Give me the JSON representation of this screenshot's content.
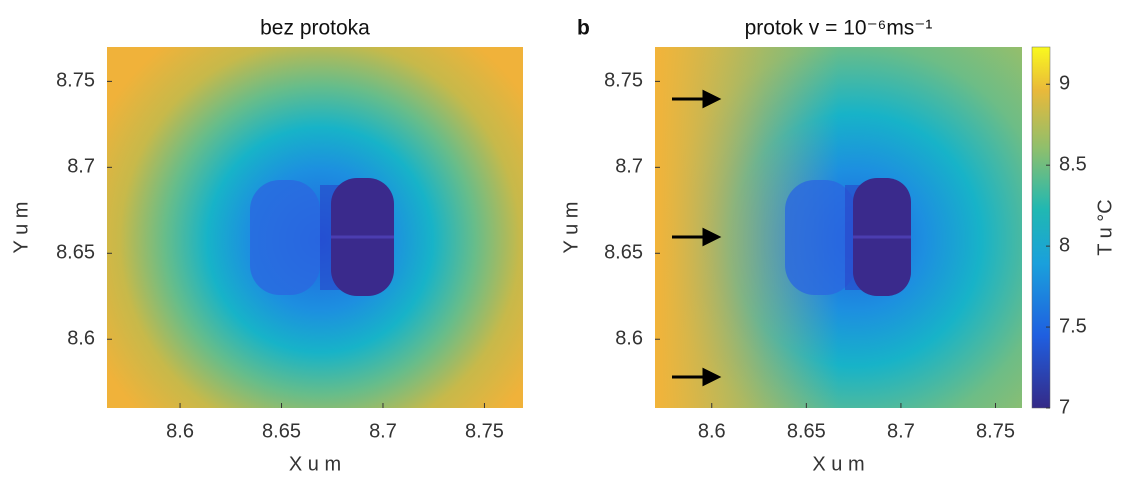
{
  "chart_data": [
    {
      "type": "heatmap",
      "title": "bez protoka",
      "xlabel": "X u m",
      "ylabel": "Y u m",
      "xlim": [
        8.564,
        8.769
      ],
      "ylim": [
        8.56,
        8.77
      ],
      "xticks": [
        8.6,
        8.65,
        8.7,
        8.75
      ],
      "yticks": [
        8.6,
        8.65,
        8.7,
        8.75
      ]
    },
    {
      "type": "heatmap",
      "panel_label": "b",
      "title": "protok v = 10⁻⁶ms⁻¹",
      "xlabel": "X u m",
      "ylabel": "Y u m",
      "xlim": [
        8.57,
        8.764
      ],
      "ylim": [
        8.56,
        8.77
      ],
      "xticks": [
        8.6,
        8.65,
        8.7,
        8.75
      ],
      "yticks": [
        8.6,
        8.65,
        8.7,
        8.75
      ],
      "colorbar": {
        "label": "T u °C",
        "lim": [
          7,
          9.23
        ],
        "ticks": [
          7,
          7.5,
          8,
          8.5,
          9
        ]
      }
    }
  ]
}
